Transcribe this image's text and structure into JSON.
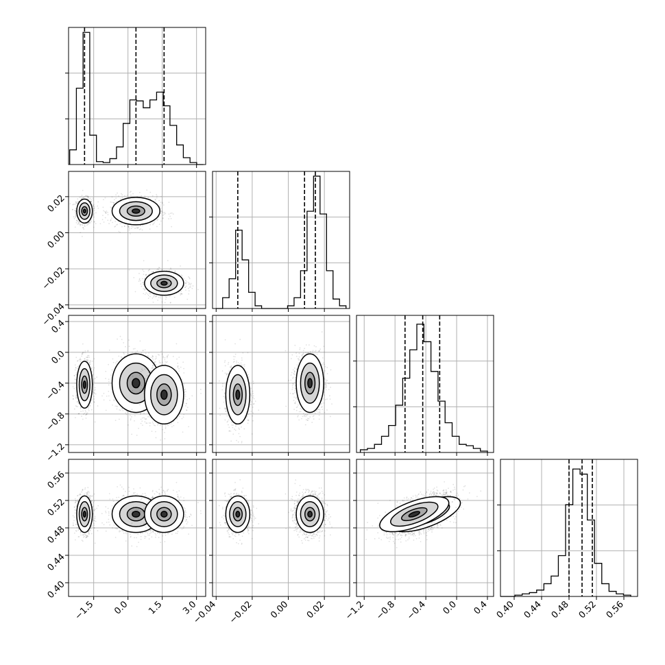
{
  "chart_data": {
    "type": "corner",
    "parameters": [
      {
        "range": [
          -2.6,
          3.4
        ],
        "ticks": [
          -1.5,
          0.0,
          1.5,
          3.0
        ],
        "tick_labels": [
          "−1.5",
          "0.0",
          "1.5",
          "3.0"
        ]
      },
      {
        "range": [
          -0.042,
          0.034
        ],
        "ticks": [
          -0.04,
          -0.02,
          0.0,
          0.02
        ],
        "tick_labels": [
          "−0.04",
          "−0.02",
          "0.00",
          "0.02"
        ]
      },
      {
        "range": [
          -1.3,
          0.48
        ],
        "ticks": [
          -1.2,
          -0.8,
          -0.4,
          0.0,
          0.4
        ],
        "tick_labels": [
          "−1.2",
          "−0.8",
          "−0.4",
          "0.0",
          "0.4"
        ]
      },
      {
        "range": [
          0.38,
          0.58
        ],
        "ticks": [
          0.4,
          0.44,
          0.48,
          0.52,
          0.56
        ],
        "tick_labels": [
          "0.40",
          "0.44",
          "0.48",
          "0.52",
          "0.56"
        ]
      }
    ],
    "histograms": [
      {
        "bins": [
          -2.55,
          3.3
        ],
        "counts": [
          0.15,
          0.78,
          1.35,
          0.3,
          0.03,
          0.02,
          0.06,
          0.18,
          0.42,
          0.66,
          0.65,
          0.58,
          0.66,
          0.74,
          0.6,
          0.4,
          0.2,
          0.07,
          0.02,
          0.0
        ],
        "quantiles": [
          -1.9,
          0.35,
          1.58
        ],
        "max_count": 1.38
      },
      {
        "bins": [
          -0.04,
          0.032
        ],
        "counts": [
          0.0,
          0.08,
          0.22,
          0.58,
          0.36,
          0.12,
          0.02,
          0.0,
          0.0,
          0.0,
          0.0,
          0.02,
          0.08,
          0.28,
          0.72,
          0.98,
          0.7,
          0.28,
          0.07,
          0.02
        ],
        "quantiles": [
          -0.028,
          0.009,
          0.015
        ],
        "max_count": 1.0
      },
      {
        "bins": [
          -1.25,
          0.4
        ],
        "counts": [
          0.02,
          0.03,
          0.06,
          0.12,
          0.2,
          0.35,
          0.55,
          0.76,
          0.95,
          0.82,
          0.6,
          0.38,
          0.22,
          0.12,
          0.06,
          0.05,
          0.03,
          0.01
        ],
        "quantiles": [
          -0.67,
          -0.44,
          -0.22
        ],
        "max_count": 1.0
      },
      {
        "bins": [
          0.38,
          0.57
        ],
        "counts": [
          0.0,
          0.0,
          0.01,
          0.02,
          0.03,
          0.05,
          0.1,
          0.16,
          0.32,
          0.72,
          1.0,
          0.96,
          0.6,
          0.26,
          0.1,
          0.04,
          0.02,
          0.01
        ],
        "quantiles": [
          0.48,
          0.499,
          0.514
        ],
        "max_count": 1.06
      }
    ],
    "modes": {
      "p0": [
        -1.9,
        0.35,
        1.58
      ],
      "p1": [
        0.012,
        0.012,
        -0.028
      ],
      "p2": [
        -0.42,
        -0.4,
        -0.55
      ],
      "p3": [
        0.5,
        0.5,
        0.5
      ]
    },
    "grid": true,
    "colors": {
      "points": "#000000",
      "density": "#000000",
      "background": "#ffffff"
    }
  }
}
